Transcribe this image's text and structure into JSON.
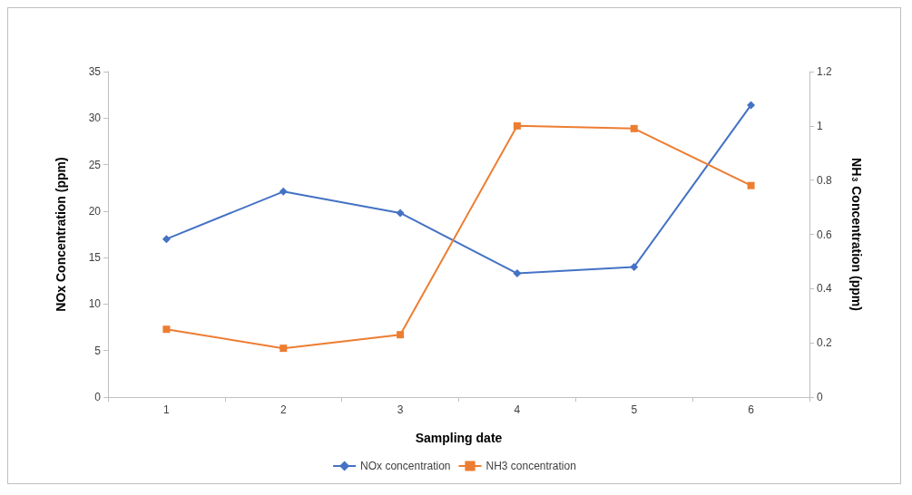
{
  "chart_data": {
    "type": "line",
    "xlabel": "Sampling date",
    "ylabel": "NOx Concentration (ppm)",
    "y2label": "NH$_{3}$ Concentration (ppm)",
    "categories": [
      "1",
      "2",
      "3",
      "4",
      "5",
      "6"
    ],
    "series": [
      {
        "name": "NOx concentration",
        "color": "#4472c4",
        "marker": "diamond",
        "values": [
          17,
          22.1,
          19.8,
          13.3,
          14,
          31.4
        ]
      },
      {
        "name": "NH3 concentration",
        "color": "#ed7d31",
        "marker": "square",
        "axis": "y2",
        "values": [
          0.25,
          0.18,
          0.23,
          1.0,
          0.99,
          0.78
        ]
      }
    ],
    "ylim": [
      0,
      35
    ],
    "yticks": [
      0,
      5,
      10,
      15,
      20,
      25,
      30,
      35
    ],
    "y2lim": [
      0,
      1.2
    ],
    "y2ticks": [
      0,
      0.2,
      0.4,
      0.6,
      0.8,
      1,
      1.2
    ],
    "grid": false,
    "legend": "bottom"
  }
}
